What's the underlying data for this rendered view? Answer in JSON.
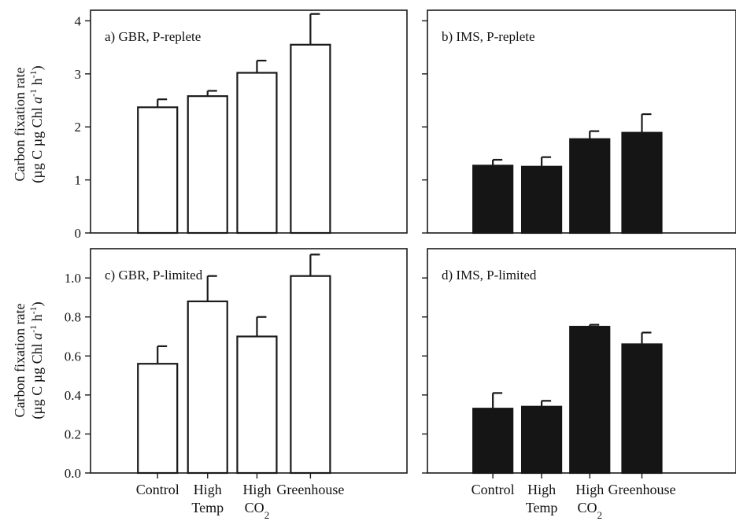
{
  "chart_data": [
    {
      "id": "a",
      "type": "bar",
      "panel_label": "a)  GBR, P-replete",
      "categories": [
        "Control",
        "High Temp",
        "High CO2",
        "Greenhouse"
      ],
      "values": [
        2.37,
        2.58,
        3.02,
        3.55
      ],
      "errors": [
        0.15,
        0.1,
        0.23,
        0.58
      ],
      "bar_fill": "#ffffff",
      "ylim": [
        0,
        4.2
      ],
      "yticks": [
        "0",
        "1",
        "2",
        "3",
        "4"
      ],
      "ylabel": "Carbon fixation rate",
      "ylabel_units": "(µg C µg Chl a⁻¹ h⁻¹)"
    },
    {
      "id": "b",
      "type": "bar",
      "panel_label": "b)  IMS, P-replete",
      "categories": [
        "Control",
        "High Temp",
        "High CO2",
        "Greenhouse"
      ],
      "values": [
        1.27,
        1.25,
        1.77,
        1.89
      ],
      "errors": [
        0.11,
        0.18,
        0.15,
        0.35
      ],
      "bar_fill": "#151515",
      "ylim": [
        0,
        4.2
      ]
    },
    {
      "id": "c",
      "type": "bar",
      "panel_label": "c)  GBR, P-limited",
      "categories": [
        "Control",
        "High Temp",
        "High CO2",
        "Greenhouse"
      ],
      "values": [
        0.56,
        0.88,
        0.7,
        1.01
      ],
      "errors": [
        0.09,
        0.13,
        0.1,
        0.11
      ],
      "bar_fill": "#ffffff",
      "ylim": [
        0,
        1.15
      ],
      "yticks": [
        "0.0",
        "0.2",
        "0.4",
        "0.6",
        "0.8",
        "1.0"
      ],
      "ylabel": "Carbon fixation rate",
      "ylabel_units": "(µg C µg Chl a⁻¹ h⁻¹)"
    },
    {
      "id": "d",
      "type": "bar",
      "panel_label": "d)  IMS, P-limited",
      "categories": [
        "Control",
        "High Temp",
        "High CO2",
        "Greenhouse"
      ],
      "values": [
        0.33,
        0.34,
        0.75,
        0.66
      ],
      "errors": [
        0.08,
        0.03,
        0.01,
        0.06
      ],
      "bar_fill": "#151515",
      "ylim": [
        0,
        1.15
      ]
    }
  ],
  "x_category_labels": [
    {
      "line1": "Control",
      "line2": ""
    },
    {
      "line1": "High",
      "line2": "Temp"
    },
    {
      "line1": "High",
      "line2": "CO",
      "subscript": "2"
    },
    {
      "line1": "Greenhouse",
      "line2": ""
    }
  ],
  "ylabel_top": {
    "line1": "Carbon fixation rate",
    "line2_pre": "(µg C µg Chl ",
    "line2_italic": "a",
    "sup1": "-1",
    "mid": " h",
    "sup2": "-1",
    "end": ")"
  },
  "ylabel_bottom": {
    "line1": "Carbon fixation rate",
    "line2_pre": "(µg C µg Chl ",
    "line2_italic": "a",
    "sup1": "-1",
    "mid": " h",
    "sup2": "-1",
    "end": ")"
  }
}
